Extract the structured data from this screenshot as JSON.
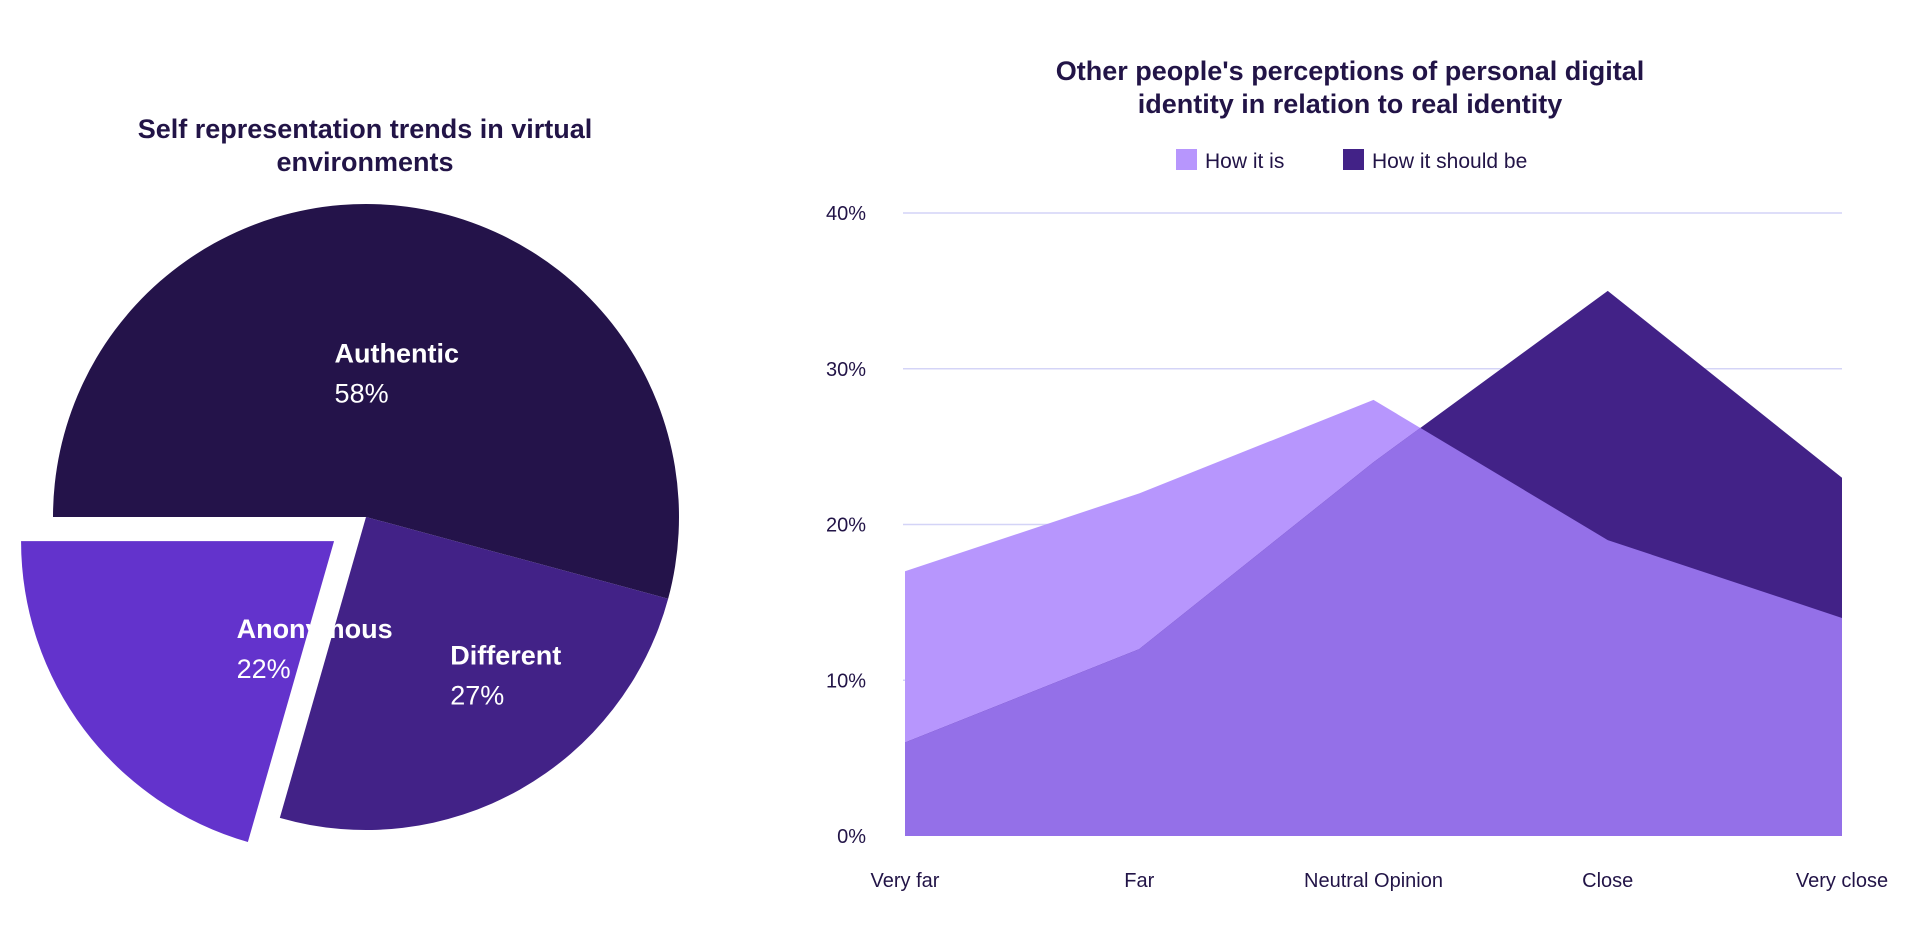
{
  "chart_data": [
    {
      "type": "pie",
      "title": "Self representation trends in virtual environments",
      "slices": [
        {
          "label": "Authentic",
          "value": 58,
          "value_label": "58%",
          "color": "#24134a",
          "exploded": false
        },
        {
          "label": "Different",
          "value": 27,
          "value_label": "27%",
          "color": "#422287",
          "exploded": false
        },
        {
          "label": "Anonymous",
          "value": 22,
          "value_label": "22%",
          "color": "#6333cc",
          "exploded": true
        }
      ]
    },
    {
      "type": "area",
      "title": "Other people's perceptions of personal digital identity in relation to real identity",
      "categories": [
        "Very far",
        "Far",
        "Neutral Opinion",
        "Close",
        "Very close"
      ],
      "series": [
        {
          "name": "How it is",
          "values": [
            17,
            22,
            28,
            19,
            14
          ],
          "color": "#b796fd"
        },
        {
          "name": "How it should be",
          "values": [
            6,
            12,
            24,
            35,
            23
          ],
          "color": "#422287"
        }
      ],
      "overlap_color": "#9470e8",
      "ylim": [
        0,
        40
      ],
      "yticks": [
        0,
        10,
        20,
        30,
        40
      ],
      "ytick_labels": [
        "0%",
        "10%",
        "20%",
        "30%",
        "40%"
      ],
      "grid": true,
      "grid_color": "#d4d4f7",
      "legend": "top-center"
    }
  ]
}
